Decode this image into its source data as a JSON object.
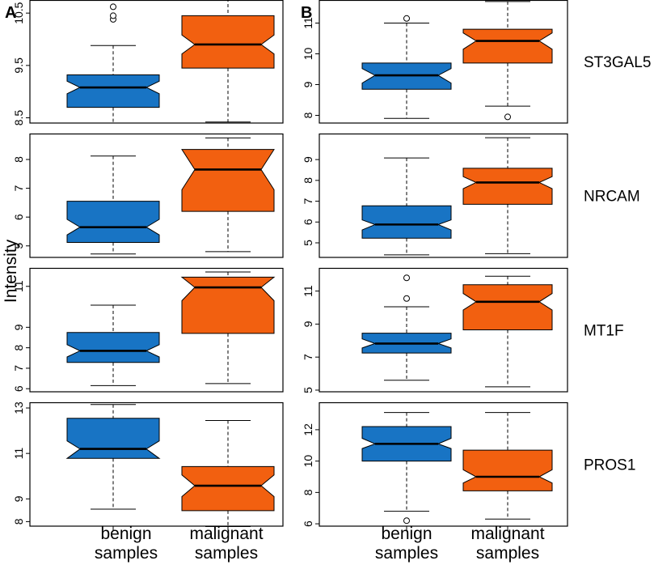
{
  "panel_labels": [
    "A",
    "B"
  ],
  "y_axis_title": "Intensity",
  "x_labels": [
    {
      "line1": "benign",
      "line2": "samples"
    },
    {
      "line1": "malignant",
      "line2": "samples"
    }
  ],
  "colors": {
    "benign": "#1874c4",
    "malignant": "#f26010",
    "frame": "#000000"
  },
  "chart_data": [
    {
      "type": "boxplot",
      "panel": "A",
      "gene": "ST3GAL5",
      "ylim": [
        8.4,
        10.75
      ],
      "yticks": [
        "8.5",
        "9.5",
        "10.5"
      ],
      "categories": [
        "benign samples",
        "malignant samples"
      ],
      "boxes": [
        {
          "name": "benign samples",
          "whisker_low": 8.4,
          "q1": 8.7,
          "median": 9.08,
          "q3": 9.32,
          "whisker_high": 9.88,
          "notch_low": 8.96,
          "notch_high": 9.2,
          "outliers": [
            10.38,
            10.45,
            10.62
          ]
        },
        {
          "name": "malignant samples",
          "whisker_low": 8.42,
          "q1": 9.45,
          "median": 9.9,
          "q3": 10.45,
          "whisker_high": 10.78,
          "notch_low": 9.72,
          "notch_high": 10.08,
          "outliers": []
        }
      ]
    },
    {
      "type": "boxplot",
      "panel": "A",
      "gene": "NRCAM",
      "ylim": [
        4.6,
        8.9
      ],
      "yticks": [
        "5",
        "6",
        "7",
        "8"
      ],
      "categories": [
        "benign samples",
        "malignant samples"
      ],
      "boxes": [
        {
          "name": "benign samples",
          "whisker_low": 4.72,
          "q1": 5.12,
          "median": 5.65,
          "q3": 6.55,
          "whisker_high": 8.12,
          "notch_low": 5.38,
          "notch_high": 5.92,
          "outliers": []
        },
        {
          "name": "malignant samples",
          "whisker_low": 4.8,
          "q1": 6.2,
          "median": 7.65,
          "q3": 8.35,
          "whisker_high": 8.75,
          "notch_low": 6.95,
          "notch_high": 8.35,
          "outliers": []
        }
      ]
    },
    {
      "type": "boxplot",
      "panel": "A",
      "gene": "MT1F",
      "ylim": [
        5.85,
        11.9
      ],
      "yticks": [
        "6",
        "7",
        "8",
        "9",
        "11"
      ],
      "categories": [
        "benign samples",
        "malignant samples"
      ],
      "boxes": [
        {
          "name": "benign samples",
          "whisker_low": 6.15,
          "q1": 7.28,
          "median": 7.85,
          "q3": 8.75,
          "whisker_high": 10.08,
          "notch_low": 7.55,
          "notch_high": 8.15,
          "outliers": []
        },
        {
          "name": "malignant samples",
          "whisker_low": 6.25,
          "q1": 8.7,
          "median": 10.95,
          "q3": 11.45,
          "whisker_high": 11.7,
          "notch_low": 10.3,
          "notch_high": 11.45,
          "outliers": []
        }
      ]
    },
    {
      "type": "boxplot",
      "panel": "A",
      "gene": "PROS1",
      "ylim": [
        7.8,
        13.25
      ],
      "yticks": [
        "8",
        "9",
        "11",
        "13"
      ],
      "categories": [
        "benign samples",
        "malignant samples"
      ],
      "boxes": [
        {
          "name": "benign samples",
          "whisker_low": 8.55,
          "q1": 10.78,
          "median": 11.2,
          "q3": 12.55,
          "whisker_high": 13.15,
          "notch_low": 10.78,
          "notch_high": 11.55,
          "outliers": []
        },
        {
          "name": "malignant samples",
          "whisker_low": 7.78,
          "q1": 8.48,
          "median": 9.58,
          "q3": 10.42,
          "whisker_high": 12.45,
          "notch_low": 9.1,
          "notch_high": 10.05,
          "outliers": []
        }
      ]
    },
    {
      "type": "boxplot",
      "panel": "B",
      "gene": "ST3GAL5",
      "ylim": [
        7.75,
        11.75
      ],
      "yticks": [
        "8",
        "9",
        "10",
        "11"
      ],
      "categories": [
        "benign samples",
        "malignant samples"
      ],
      "boxes": [
        {
          "name": "benign samples",
          "whisker_low": 7.9,
          "q1": 8.85,
          "median": 9.3,
          "q3": 9.7,
          "whisker_high": 11.0,
          "notch_low": 9.05,
          "notch_high": 9.52,
          "outliers": [
            11.15
          ]
        },
        {
          "name": "malignant samples",
          "whisker_low": 8.3,
          "q1": 9.7,
          "median": 10.42,
          "q3": 10.8,
          "whisker_high": 11.7,
          "notch_low": 10.15,
          "notch_high": 10.68,
          "outliers": [
            7.95
          ]
        }
      ]
    },
    {
      "type": "boxplot",
      "panel": "B",
      "gene": "NRCAM",
      "ylim": [
        4.3,
        10.25
      ],
      "yticks": [
        "5",
        "6",
        "7",
        "8",
        "9"
      ],
      "categories": [
        "benign samples",
        "malignant samples"
      ],
      "boxes": [
        {
          "name": "benign samples",
          "whisker_low": 4.42,
          "q1": 5.22,
          "median": 5.88,
          "q3": 6.78,
          "whisker_high": 9.08,
          "notch_low": 5.62,
          "notch_high": 6.1,
          "outliers": []
        },
        {
          "name": "malignant samples",
          "whisker_low": 4.48,
          "q1": 6.85,
          "median": 7.9,
          "q3": 8.58,
          "whisker_high": 10.05,
          "notch_low": 7.6,
          "notch_high": 8.18,
          "outliers": []
        }
      ]
    },
    {
      "type": "boxplot",
      "panel": "B",
      "gene": "MT1F",
      "ylim": [
        4.9,
        12.4
      ],
      "yticks": [
        "5",
        "7",
        "9",
        "11"
      ],
      "categories": [
        "benign samples",
        "malignant samples"
      ],
      "boxes": [
        {
          "name": "benign samples",
          "whisker_low": 5.6,
          "q1": 7.25,
          "median": 7.82,
          "q3": 8.45,
          "whisker_high": 10.05,
          "notch_low": 7.55,
          "notch_high": 8.1,
          "outliers": [
            10.55,
            11.8
          ]
        },
        {
          "name": "malignant samples",
          "whisker_low": 5.2,
          "q1": 8.65,
          "median": 10.35,
          "q3": 11.38,
          "whisker_high": 11.9,
          "notch_low": 9.85,
          "notch_high": 10.85,
          "outliers": []
        }
      ]
    },
    {
      "type": "boxplot",
      "panel": "B",
      "gene": "PROS1",
      "ylim": [
        5.85,
        13.75
      ],
      "yticks": [
        "6",
        "8",
        "10",
        "12"
      ],
      "categories": [
        "benign samples",
        "malignant samples"
      ],
      "boxes": [
        {
          "name": "benign samples",
          "whisker_low": 6.8,
          "q1": 10.0,
          "median": 11.1,
          "q3": 12.2,
          "whisker_high": 13.1,
          "notch_low": 10.8,
          "notch_high": 11.45,
          "outliers": [
            6.2
          ]
        },
        {
          "name": "malignant samples",
          "whisker_low": 6.3,
          "q1": 8.1,
          "median": 9.0,
          "q3": 10.7,
          "whisker_high": 13.1,
          "notch_low": 8.6,
          "notch_high": 9.45,
          "outliers": []
        }
      ]
    }
  ]
}
